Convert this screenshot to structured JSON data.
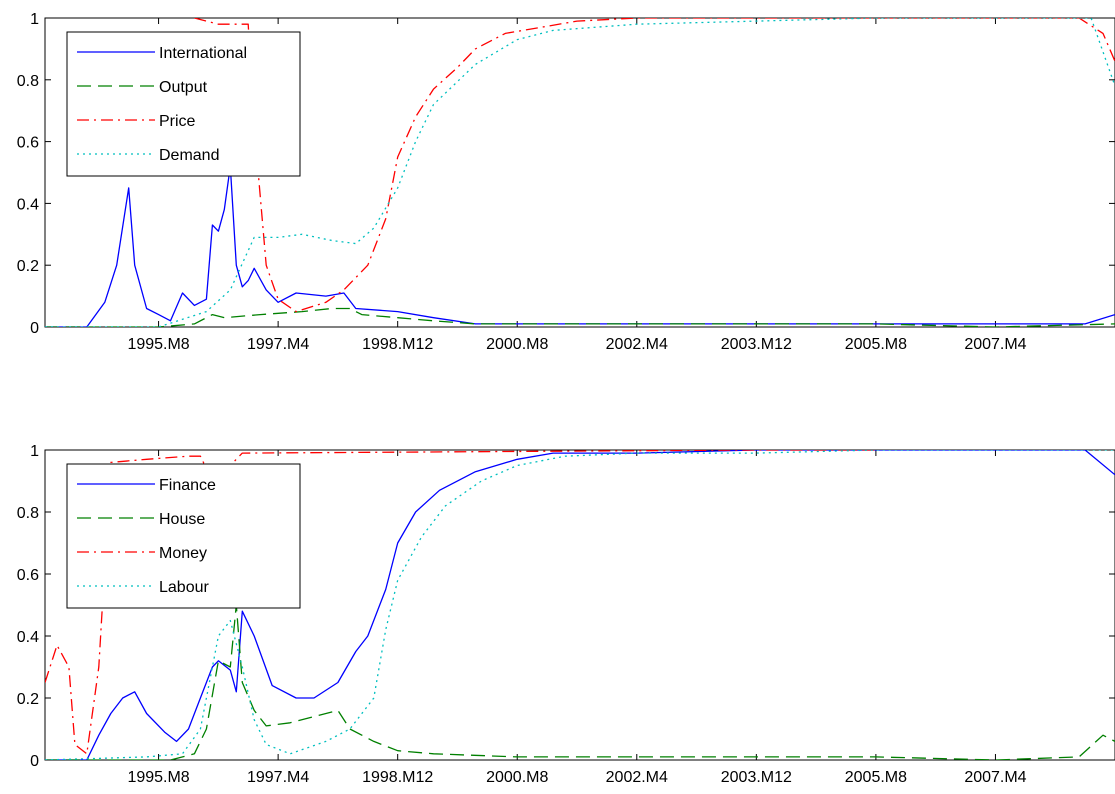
{
  "chart_data": [
    {
      "type": "line",
      "x_tick_labels": [
        "1995.M8",
        "1997.M4",
        "1998.M12",
        "2000.M8",
        "2002.M4",
        "2003.M12",
        "2005.M8",
        "2007.M4"
      ],
      "y_tick_labels": [
        "0",
        "0.2",
        "0.4",
        "0.6",
        "0.8",
        "1"
      ],
      "xlim": [
        "1994.M1",
        "2008.M12"
      ],
      "ylim": [
        0,
        1
      ],
      "grid": false,
      "legend_position": "top-left",
      "series": [
        {
          "name": "International",
          "color": "#0000ff",
          "style": "solid",
          "points": [
            [
              "1994.M1",
              0.0
            ],
            [
              "1994.M8",
              0.0
            ],
            [
              "1994.M11",
              0.08
            ],
            [
              "1995.M1",
              0.2
            ],
            [
              "1995.M3",
              0.45
            ],
            [
              "1995.M4",
              0.2
            ],
            [
              "1995.M6",
              0.06
            ],
            [
              "1995.M8",
              0.04
            ],
            [
              "1995.M10",
              0.02
            ],
            [
              "1995.M12",
              0.11
            ],
            [
              "1996.M2",
              0.07
            ],
            [
              "1996.M4",
              0.09
            ],
            [
              "1996.M5",
              0.33
            ],
            [
              "1996.M6",
              0.31
            ],
            [
              "1996.M7",
              0.38
            ],
            [
              "1996.M8",
              0.52
            ],
            [
              "1996.M9",
              0.2
            ],
            [
              "1996.M10",
              0.13
            ],
            [
              "1996.M11",
              0.15
            ],
            [
              "1996.M12",
              0.19
            ],
            [
              "1997.M2",
              0.12
            ],
            [
              "1997.M4",
              0.08
            ],
            [
              "1997.M7",
              0.11
            ],
            [
              "1997.M12",
              0.1
            ],
            [
              "1998.M3",
              0.11
            ],
            [
              "1998.M5",
              0.06
            ],
            [
              "1998.M12",
              0.05
            ],
            [
              "1999.M6",
              0.03
            ],
            [
              "2000.M1",
              0.01
            ],
            [
              "2000.M8",
              0.01
            ],
            [
              "2002.M4",
              0.01
            ],
            [
              "2003.M12",
              0.01
            ],
            [
              "2005.M8",
              0.01
            ],
            [
              "2007.M4",
              0.01
            ],
            [
              "2008.M7",
              0.01
            ],
            [
              "2008.M12",
              0.04
            ]
          ]
        },
        {
          "name": "Output",
          "color": "#008000",
          "style": "dashed",
          "points": [
            [
              "1994.M1",
              0.0
            ],
            [
              "1995.M8",
              0.0
            ],
            [
              "1996.M2",
              0.01
            ],
            [
              "1996.M5",
              0.04
            ],
            [
              "1996.M7",
              0.03
            ],
            [
              "1997.M1",
              0.04
            ],
            [
              "1997.M8",
              0.05
            ],
            [
              "1998.M1",
              0.06
            ],
            [
              "1998.M4",
              0.06
            ],
            [
              "1998.M6",
              0.04
            ],
            [
              "1998.M12",
              0.03
            ],
            [
              "1999.M6",
              0.02
            ],
            [
              "2000.M1",
              0.01
            ],
            [
              "2000.M8",
              0.01
            ],
            [
              "2002.M4",
              0.01
            ],
            [
              "2003.M12",
              0.01
            ],
            [
              "2005.M8",
              0.01
            ],
            [
              "2007.M4",
              0.0
            ],
            [
              "2008.M12",
              0.01
            ]
          ]
        },
        {
          "name": "Price",
          "color": "#ff0000",
          "style": "dashdot",
          "points": [
            [
              "1996.M2",
              1.0
            ],
            [
              "1996.M6",
              0.98
            ],
            [
              "1996.M11",
              0.98
            ],
            [
              "1996.M12",
              0.65
            ],
            [
              "1997.M2",
              0.2
            ],
            [
              "1997.M4",
              0.09
            ],
            [
              "1997.M7",
              0.05
            ],
            [
              "1997.M12",
              0.08
            ],
            [
              "1998.M3",
              0.12
            ],
            [
              "1998.M7",
              0.2
            ],
            [
              "1998.M10",
              0.35
            ],
            [
              "1998.M12",
              0.55
            ],
            [
              "1999.M3",
              0.68
            ],
            [
              "1999.M6",
              0.77
            ],
            [
              "1999.M10",
              0.84
            ],
            [
              "2000.M1",
              0.9
            ],
            [
              "2000.M6",
              0.95
            ],
            [
              "2000.M12",
              0.97
            ],
            [
              "2001.M6",
              0.99
            ],
            [
              "2002.M4",
              1.0
            ],
            [
              "2003.M12",
              1.0
            ],
            [
              "2005.M8",
              1.0
            ],
            [
              "2007.M4",
              1.0
            ],
            [
              "2008.M6",
              1.0
            ],
            [
              "2008.M10",
              0.95
            ],
            [
              "2008.M12",
              0.86
            ]
          ]
        },
        {
          "name": "Demand",
          "color": "#00bfbf",
          "style": "dotted",
          "points": [
            [
              "1994.M1",
              0.0
            ],
            [
              "1995.M8",
              0.0
            ],
            [
              "1996.M4",
              0.05
            ],
            [
              "1996.M8",
              0.12
            ],
            [
              "1996.M12",
              0.29
            ],
            [
              "1997.M4",
              0.29
            ],
            [
              "1997.M8",
              0.3
            ],
            [
              "1998.M1",
              0.28
            ],
            [
              "1998.M5",
              0.27
            ],
            [
              "1998.M8",
              0.32
            ],
            [
              "1998.M12",
              0.45
            ],
            [
              "1999.M3",
              0.6
            ],
            [
              "1999.M6",
              0.72
            ],
            [
              "2000.M1",
              0.85
            ],
            [
              "2000.M8",
              0.93
            ],
            [
              "2001.M2",
              0.96
            ],
            [
              "2002.M4",
              0.98
            ],
            [
              "2003.M12",
              0.99
            ],
            [
              "2005.M8",
              1.0
            ],
            [
              "2007.M4",
              1.0
            ],
            [
              "2008.M8",
              1.0
            ],
            [
              "2008.M12",
              0.78
            ]
          ]
        }
      ]
    },
    {
      "type": "line",
      "x_tick_labels": [
        "1995.M8",
        "1997.M4",
        "1998.M12",
        "2000.M8",
        "2002.M4",
        "2003.M12",
        "2005.M8",
        "2007.M4"
      ],
      "y_tick_labels": [
        "0",
        "0.2",
        "0.4",
        "0.6",
        "0.8",
        "1"
      ],
      "xlim": [
        "1994.M1",
        "2008.M12"
      ],
      "ylim": [
        0,
        1
      ],
      "grid": false,
      "legend_position": "top-left",
      "series": [
        {
          "name": "Finance",
          "color": "#0000ff",
          "style": "solid",
          "points": [
            [
              "1994.M1",
              0.0
            ],
            [
              "1994.M8",
              0.0
            ],
            [
              "1994.M10",
              0.08
            ],
            [
              "1994.M12",
              0.15
            ],
            [
              "1995.M2",
              0.2
            ],
            [
              "1995.M4",
              0.22
            ],
            [
              "1995.M6",
              0.15
            ],
            [
              "1995.M9",
              0.09
            ],
            [
              "1995.M11",
              0.06
            ],
            [
              "1996.M1",
              0.1
            ],
            [
              "1996.M3",
              0.2
            ],
            [
              "1996.M5",
              0.3
            ],
            [
              "1996.M6",
              0.32
            ],
            [
              "1996.M8",
              0.29
            ],
            [
              "1996.M9",
              0.22
            ],
            [
              "1996.M10",
              0.48
            ],
            [
              "1996.M12",
              0.4
            ],
            [
              "1997.M3",
              0.24
            ],
            [
              "1997.M7",
              0.2
            ],
            [
              "1997.M10",
              0.2
            ],
            [
              "1998.M2",
              0.25
            ],
            [
              "1998.M5",
              0.35
            ],
            [
              "1998.M7",
              0.4
            ],
            [
              "1998.M10",
              0.55
            ],
            [
              "1998.M12",
              0.7
            ],
            [
              "1999.M3",
              0.8
            ],
            [
              "1999.M7",
              0.87
            ],
            [
              "2000.M1",
              0.93
            ],
            [
              "2000.M8",
              0.97
            ],
            [
              "2001.M2",
              0.99
            ],
            [
              "2002.M4",
              0.99
            ],
            [
              "2003.M12",
              1.0
            ],
            [
              "2005.M8",
              1.0
            ],
            [
              "2007.M4",
              1.0
            ],
            [
              "2008.M7",
              1.0
            ],
            [
              "2008.M12",
              0.92
            ]
          ]
        },
        {
          "name": "House",
          "color": "#008000",
          "style": "dashed",
          "points": [
            [
              "1994.M1",
              0.0
            ],
            [
              "1995.M10",
              0.0
            ],
            [
              "1996.M2",
              0.02
            ],
            [
              "1996.M4",
              0.1
            ],
            [
              "1996.M6",
              0.32
            ],
            [
              "1996.M8",
              0.3
            ],
            [
              "1996.M9",
              0.5
            ],
            [
              "1996.M10",
              0.25
            ],
            [
              "1996.M12",
              0.16
            ],
            [
              "1997.M2",
              0.11
            ],
            [
              "1997.M6",
              0.12
            ],
            [
              "1997.M10",
              0.14
            ],
            [
              "1998.M2",
              0.16
            ],
            [
              "1998.M4",
              0.1
            ],
            [
              "1998.M8",
              0.06
            ],
            [
              "1998.M12",
              0.03
            ],
            [
              "1999.M6",
              0.02
            ],
            [
              "2000.M8",
              0.01
            ],
            [
              "2002.M4",
              0.01
            ],
            [
              "2003.M12",
              0.01
            ],
            [
              "2005.M8",
              0.01
            ],
            [
              "2007.M4",
              0.0
            ],
            [
              "2008.M6",
              0.01
            ],
            [
              "2008.M10",
              0.08
            ],
            [
              "2008.M12",
              0.06
            ]
          ]
        },
        {
          "name": "Money",
          "color": "#ff0000",
          "style": "dashdot",
          "points": [
            [
              "1994.M1",
              0.25
            ],
            [
              "1994.M3",
              0.37
            ],
            [
              "1994.M5",
              0.3
            ],
            [
              "1994.M6",
              0.05
            ],
            [
              "1994.M8",
              0.02
            ],
            [
              "1994.M10",
              0.3
            ],
            [
              "1994.M12",
              0.96
            ],
            [
              "1995.M6",
              0.97
            ],
            [
              "1996.M1",
              0.98
            ],
            [
              "1996.M3",
              0.98
            ],
            [
              "1996.M6",
              0.86
            ],
            [
              "1996.M8",
              0.95
            ],
            [
              "1996.M10",
              0.99
            ],
            [
              "2003.M12",
              1.0
            ],
            [
              "2005.M8",
              1.0
            ]
          ]
        },
        {
          "name": "Labour",
          "color": "#00bfbf",
          "style": "dotted",
          "points": [
            [
              "1994.M1",
              0.0
            ],
            [
              "1995.M6",
              0.01
            ],
            [
              "1995.M12",
              0.02
            ],
            [
              "1996.M3",
              0.1
            ],
            [
              "1996.M6",
              0.4
            ],
            [
              "1996.M8",
              0.45
            ],
            [
              "1996.M10",
              0.3
            ],
            [
              "1996.M12",
              0.13
            ],
            [
              "1997.M2",
              0.05
            ],
            [
              "1997.M6",
              0.02
            ],
            [
              "1997.M12",
              0.06
            ],
            [
              "1998.M4",
              0.1
            ],
            [
              "1998.M8",
              0.2
            ],
            [
              "1998.M10",
              0.42
            ],
            [
              "1998.M12",
              0.58
            ],
            [
              "1999.M4",
              0.72
            ],
            [
              "1999.M8",
              0.82
            ],
            [
              "2000.M2",
              0.9
            ],
            [
              "2000.M8",
              0.95
            ],
            [
              "2001.M4",
              0.98
            ],
            [
              "2002.M4",
              0.99
            ],
            [
              "2003.M12",
              0.99
            ],
            [
              "2005.M8",
              1.0
            ],
            [
              "2007.M4",
              1.0
            ],
            [
              "2008.M12",
              1.0
            ]
          ]
        }
      ]
    }
  ]
}
